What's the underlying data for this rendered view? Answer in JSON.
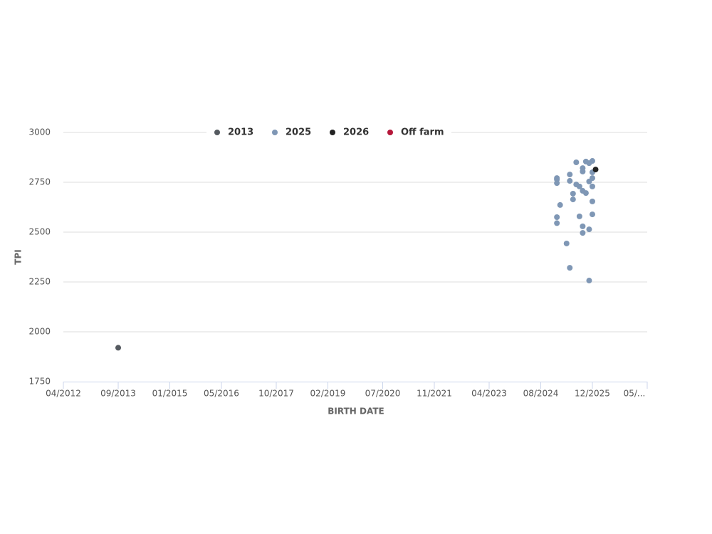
{
  "chart_data": {
    "type": "scatter",
    "x_label": "BIRTH DATE",
    "y_label": "TPI",
    "xlim": [
      "04/2012",
      "05/2027"
    ],
    "xticks": [
      "04/2012",
      "09/2013",
      "01/2015",
      "05/2016",
      "10/2017",
      "02/2019",
      "07/2020",
      "11/2021",
      "04/2023",
      "08/2024",
      "12/2025",
      {
        "value": "05/2027",
        "label": "05/..."
      }
    ],
    "ylim": [
      1750,
      3000
    ],
    "yticks": [
      1750,
      2000,
      2250,
      2500,
      2750,
      3000
    ],
    "grid": true,
    "legend": "top",
    "series": [
      {
        "name": "2013",
        "color": "#555a60",
        "x": [
          "09/2013"
        ],
        "values": [
          1920
        ]
      },
      {
        "name": "2025",
        "color": "#7f97b5",
        "x": [
          "01/2025",
          "01/2025",
          "01/2025",
          "02/2025",
          "01/2025",
          "01/2025",
          "04/2025",
          "05/2025",
          "05/2025",
          "05/2025",
          "06/2025",
          "06/2025",
          "07/2025",
          "07/2025",
          "08/2025",
          "08/2025",
          "09/2025",
          "09/2025",
          "09/2025",
          "09/2025",
          "09/2025",
          "10/2025",
          "10/2025",
          "11/2025",
          "11/2025",
          "11/2025",
          "11/2025",
          "12/2025",
          "12/2025",
          "12/2025",
          "12/2025",
          "12/2025",
          "12/2025"
        ],
        "values": [
          2771,
          2764,
          2746,
          2636,
          2575,
          2545,
          2443,
          2321,
          2789,
          2757,
          2693,
          2664,
          2850,
          2739,
          2579,
          2729,
          2529,
          2496,
          2804,
          2821,
          2707,
          2696,
          2854,
          2846,
          2257,
          2754,
          2514,
          2771,
          2589,
          2654,
          2729,
          2857,
          2800
        ]
      },
      {
        "name": "2026",
        "color": "#222222",
        "x": [
          "01/2026"
        ],
        "values": [
          2814
        ]
      },
      {
        "name": "Off farm",
        "color": "#b5173a",
        "x": [],
        "values": []
      }
    ]
  }
}
